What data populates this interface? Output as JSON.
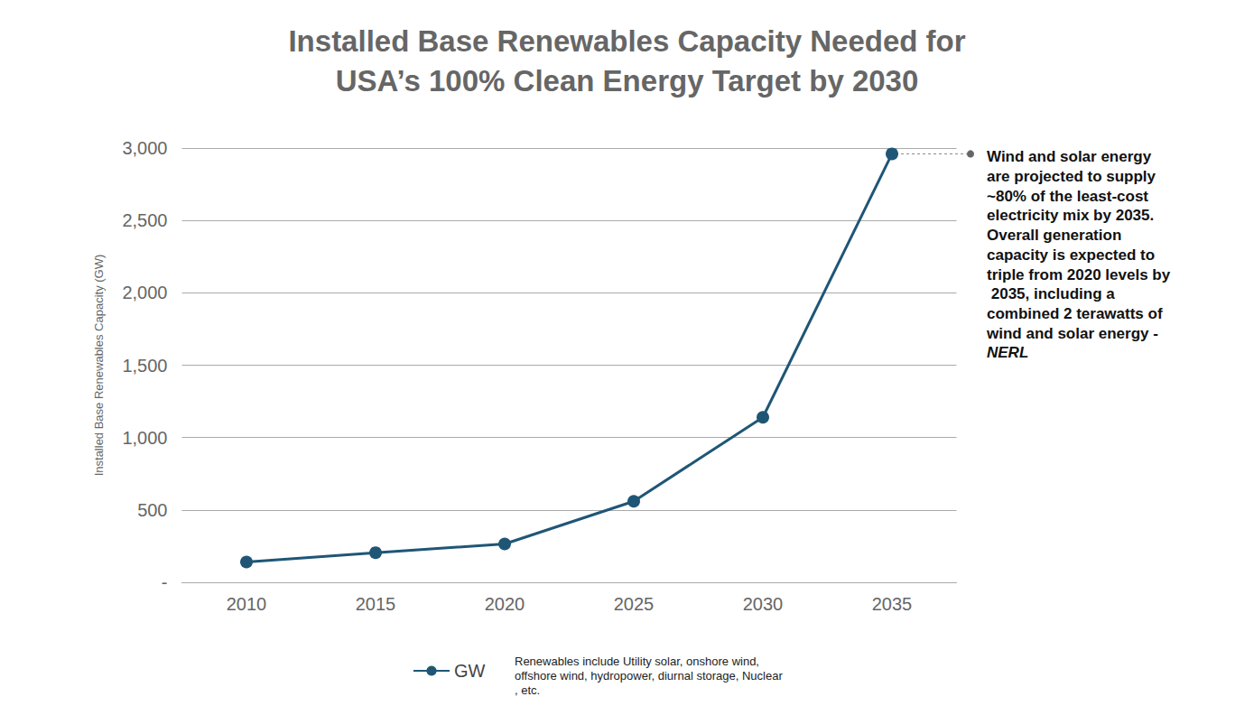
{
  "chart_data": {
    "type": "line",
    "title": "Installed Base Renewables Capacity Needed for\nUSA’s 100% Clean Energy Target by 2030",
    "y_label": "Installed Base Renewables Capacity (GW)",
    "categories": [
      "2010",
      "2015",
      "2020",
      "2025",
      "2030",
      "2035"
    ],
    "series": [
      {
        "name": "GW",
        "color": "#1f5676",
        "marker": "circle",
        "line_style": "solid",
        "values": [
          140,
          205,
          265,
          560,
          1140,
          2960
        ]
      }
    ],
    "ylim": [
      0,
      3000
    ],
    "yticks": [
      {
        "value": 0,
        "label": "-"
      },
      500,
      {
        "value": 1000,
        "label": "1,000"
      },
      {
        "value": 1500,
        "label": "1,500"
      },
      {
        "value": 2000,
        "label": "2,000"
      },
      {
        "value": 2500,
        "label": "2,500"
      },
      {
        "value": 3000,
        "label": "3,000"
      }
    ],
    "grid": true,
    "legend": "bottom",
    "legend_note": "Renewables include Utility solar, onshore wind, offshore wind, hydropower, diurnal storage, Nuclear, etc.",
    "annotation": {
      "x": "2035",
      "text": "Wind and solar energy are projected to supply ~80% of the least-cost electricity mix by 2035. Overall generation capacity is expected to triple from 2020 levels by 2035, including a combined 2 terawatts of wind and solar energy -",
      "source": "NERL"
    }
  }
}
